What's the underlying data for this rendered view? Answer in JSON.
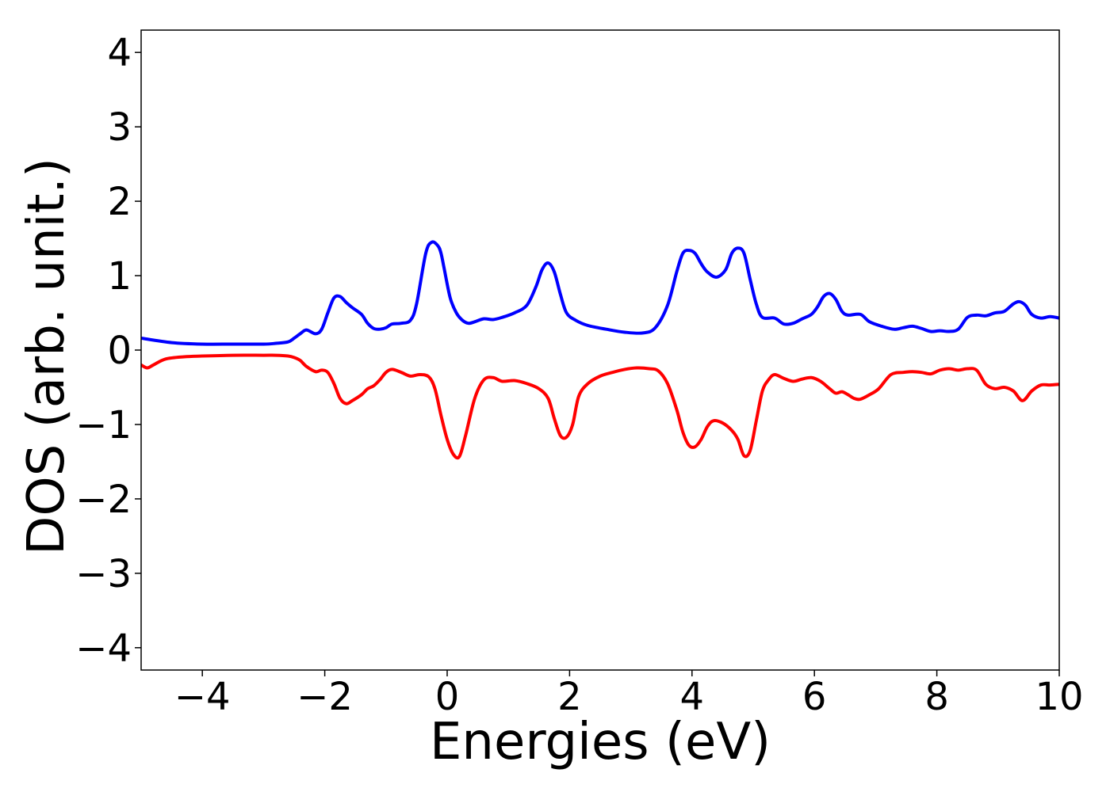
{
  "chart_data": {
    "type": "line",
    "title": "",
    "xlabel": "Energies (eV)",
    "ylabel": "DOS (arb. unit.)",
    "xlim": [
      -5,
      10
    ],
    "ylim": [
      -4.3,
      4.3
    ],
    "x_ticks": [
      -4,
      -2,
      0,
      2,
      4,
      6,
      8,
      10
    ],
    "x_tick_labels": [
      "−4",
      "−2",
      "0",
      "2",
      "4",
      "6",
      "8",
      "10"
    ],
    "y_ticks": [
      -4,
      -3,
      -2,
      -1,
      0,
      1,
      2,
      3,
      4
    ],
    "y_tick_labels": [
      "−4",
      "−3",
      "−2",
      "−1",
      "0",
      "1",
      "2",
      "3",
      "4"
    ],
    "grid": false,
    "legend": "none",
    "series": [
      {
        "color": "#0000ff",
        "x": [
          -5.0,
          -4.5,
          -4.0,
          -3.5,
          -3.0,
          -2.8,
          -2.6,
          -2.5,
          -2.4,
          -2.3,
          -2.15,
          -2.05,
          -1.95,
          -1.85,
          -1.75,
          -1.65,
          -1.55,
          -1.4,
          -1.3,
          -1.2,
          -1.1,
          -1.0,
          -0.9,
          -0.75,
          -0.6,
          -0.5,
          -0.35,
          -0.25,
          -0.15,
          -0.1,
          -0.05,
          0.05,
          0.15,
          0.25,
          0.35,
          0.45,
          0.6,
          0.75,
          0.9,
          1.1,
          1.3,
          1.45,
          1.55,
          1.65,
          1.75,
          1.85,
          1.95,
          2.1,
          2.3,
          2.6,
          2.9,
          3.2,
          3.4,
          3.6,
          3.75,
          3.85,
          3.95,
          4.05,
          4.15,
          4.25,
          4.4,
          4.55,
          4.65,
          4.75,
          4.85,
          4.95,
          5.05,
          5.15,
          5.35,
          5.5,
          5.65,
          5.8,
          5.95,
          6.05,
          6.15,
          6.25,
          6.35,
          6.45,
          6.55,
          6.75,
          6.9,
          7.1,
          7.3,
          7.45,
          7.6,
          7.75,
          7.9,
          8.05,
          8.2,
          8.35,
          8.5,
          8.65,
          8.8,
          8.95,
          9.1,
          9.25,
          9.35,
          9.45,
          9.55,
          9.7,
          9.85,
          10.0
        ],
        "y": [
          0.16,
          0.1,
          0.08,
          0.08,
          0.08,
          0.09,
          0.11,
          0.16,
          0.22,
          0.27,
          0.22,
          0.28,
          0.5,
          0.7,
          0.72,
          0.64,
          0.57,
          0.48,
          0.36,
          0.29,
          0.28,
          0.3,
          0.35,
          0.36,
          0.4,
          0.62,
          1.3,
          1.45,
          1.4,
          1.3,
          1.1,
          0.7,
          0.5,
          0.4,
          0.36,
          0.38,
          0.42,
          0.41,
          0.44,
          0.5,
          0.6,
          0.85,
          1.08,
          1.17,
          1.05,
          0.75,
          0.5,
          0.4,
          0.33,
          0.28,
          0.24,
          0.23,
          0.3,
          0.6,
          1.05,
          1.3,
          1.34,
          1.3,
          1.16,
          1.05,
          0.98,
          1.08,
          1.3,
          1.37,
          1.3,
          0.95,
          0.62,
          0.44,
          0.43,
          0.35,
          0.36,
          0.42,
          0.48,
          0.58,
          0.72,
          0.76,
          0.68,
          0.52,
          0.47,
          0.48,
          0.38,
          0.32,
          0.28,
          0.3,
          0.32,
          0.29,
          0.25,
          0.26,
          0.25,
          0.28,
          0.44,
          0.47,
          0.46,
          0.5,
          0.52,
          0.62,
          0.65,
          0.6,
          0.48,
          0.43,
          0.45,
          0.43
        ]
      },
      {
        "color": "#ff0000",
        "x": [
          -5.0,
          -4.9,
          -4.8,
          -4.6,
          -4.3,
          -4.0,
          -3.5,
          -3.0,
          -2.8,
          -2.6,
          -2.5,
          -2.4,
          -2.3,
          -2.15,
          -2.05,
          -1.95,
          -1.85,
          -1.75,
          -1.65,
          -1.55,
          -1.4,
          -1.3,
          -1.2,
          -1.1,
          -1.0,
          -0.9,
          -0.75,
          -0.6,
          -0.45,
          -0.3,
          -0.2,
          -0.1,
          0.0,
          0.1,
          0.2,
          0.3,
          0.45,
          0.6,
          0.75,
          0.9,
          1.1,
          1.3,
          1.5,
          1.65,
          1.75,
          1.85,
          1.95,
          2.05,
          2.15,
          2.3,
          2.5,
          2.7,
          2.9,
          3.1,
          3.3,
          3.45,
          3.6,
          3.75,
          3.85,
          3.95,
          4.05,
          4.15,
          4.25,
          4.35,
          4.5,
          4.65,
          4.75,
          4.85,
          4.95,
          5.05,
          5.15,
          5.25,
          5.35,
          5.5,
          5.65,
          5.8,
          5.95,
          6.1,
          6.25,
          6.35,
          6.45,
          6.55,
          6.65,
          6.75,
          6.9,
          7.05,
          7.25,
          7.45,
          7.6,
          7.75,
          7.9,
          8.05,
          8.2,
          8.35,
          8.5,
          8.65,
          8.8,
          8.95,
          9.1,
          9.25,
          9.4,
          9.55,
          9.7,
          9.85,
          10.0
        ],
        "y": [
          -0.2,
          -0.24,
          -0.2,
          -0.12,
          -0.09,
          -0.08,
          -0.07,
          -0.07,
          -0.07,
          -0.08,
          -0.1,
          -0.14,
          -0.22,
          -0.29,
          -0.27,
          -0.3,
          -0.45,
          -0.65,
          -0.72,
          -0.68,
          -0.6,
          -0.52,
          -0.48,
          -0.4,
          -0.3,
          -0.26,
          -0.3,
          -0.35,
          -0.33,
          -0.36,
          -0.52,
          -0.88,
          -1.2,
          -1.4,
          -1.43,
          -1.15,
          -0.65,
          -0.4,
          -0.37,
          -0.42,
          -0.41,
          -0.45,
          -0.52,
          -0.65,
          -0.92,
          -1.15,
          -1.17,
          -1.0,
          -0.62,
          -0.45,
          -0.35,
          -0.3,
          -0.26,
          -0.24,
          -0.25,
          -0.28,
          -0.45,
          -0.8,
          -1.1,
          -1.28,
          -1.3,
          -1.2,
          -1.03,
          -0.95,
          -0.98,
          -1.08,
          -1.2,
          -1.42,
          -1.35,
          -0.95,
          -0.55,
          -0.4,
          -0.33,
          -0.38,
          -0.42,
          -0.39,
          -0.37,
          -0.42,
          -0.52,
          -0.58,
          -0.56,
          -0.6,
          -0.65,
          -0.66,
          -0.6,
          -0.52,
          -0.33,
          -0.3,
          -0.29,
          -0.3,
          -0.32,
          -0.27,
          -0.25,
          -0.27,
          -0.25,
          -0.27,
          -0.46,
          -0.52,
          -0.5,
          -0.55,
          -0.68,
          -0.55,
          -0.47,
          -0.47,
          -0.46
        ]
      }
    ]
  }
}
